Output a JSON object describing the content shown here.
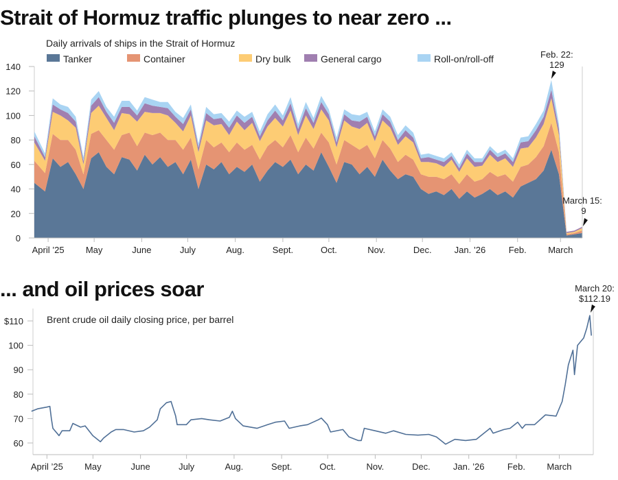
{
  "chart_data": [
    {
      "type": "area",
      "stacked": true,
      "title": "Strait of Hormuz traffic plunges to near zero ...",
      "subtitle": "Daily arrivals of ships in the Strait of Hormuz",
      "start_date": "2025-03-25",
      "step_days": 5,
      "ylim": [
        0,
        140
      ],
      "yticks": [
        0,
        20,
        40,
        60,
        80,
        100,
        120,
        140
      ],
      "xticks": [
        {
          "date": "2025-04-01",
          "label": "April ’25"
        },
        {
          "date": "2025-05-01",
          "label": "May"
        },
        {
          "date": "2025-06-01",
          "label": "June"
        },
        {
          "date": "2025-07-01",
          "label": "July"
        },
        {
          "date": "2025-08-01",
          "label": "Aug."
        },
        {
          "date": "2025-09-01",
          "label": "Sept."
        },
        {
          "date": "2025-10-01",
          "label": "Oct."
        },
        {
          "date": "2025-11-01",
          "label": "Nov."
        },
        {
          "date": "2025-12-01",
          "label": "Dec."
        },
        {
          "date": "2026-01-01",
          "label": "Jan. ’26"
        },
        {
          "date": "2026-02-01",
          "label": "Feb."
        },
        {
          "date": "2026-03-01",
          "label": "March"
        }
      ],
      "series": [
        {
          "name": "Tanker",
          "color": "#5a7797",
          "values": [
            45,
            38,
            65,
            58,
            62,
            52,
            40,
            65,
            70,
            58,
            52,
            66,
            64,
            55,
            68,
            60,
            66,
            58,
            62,
            52,
            64,
            40,
            60,
            56,
            62,
            52,
            58,
            54,
            60,
            46,
            55,
            62,
            58,
            64,
            52,
            60,
            55,
            70,
            58,
            45,
            62,
            60,
            52,
            58,
            50,
            64,
            55,
            48,
            52,
            50,
            40,
            36,
            38,
            35,
            40,
            32,
            38,
            33,
            36,
            40,
            35,
            38,
            33,
            42,
            45,
            48,
            55,
            72,
            52,
            2,
            3,
            4
          ]
        },
        {
          "name": "Container",
          "color": "#e59473",
          "values": [
            18,
            15,
            20,
            22,
            18,
            20,
            12,
            20,
            18,
            22,
            20,
            18,
            22,
            20,
            18,
            24,
            20,
            22,
            18,
            20,
            18,
            16,
            20,
            18,
            16,
            18,
            20,
            18,
            16,
            18,
            20,
            18,
            16,
            20,
            18,
            22,
            18,
            16,
            20,
            15,
            18,
            16,
            20,
            18,
            15,
            16,
            18,
            14,
            16,
            14,
            12,
            14,
            12,
            13,
            12,
            12,
            14,
            13,
            12,
            14,
            15,
            14,
            13,
            16,
            15,
            18,
            20,
            22,
            18,
            1,
            1,
            2
          ]
        },
        {
          "name": "Dry bulk",
          "color": "#fdcc74",
          "values": [
            15,
            10,
            18,
            20,
            16,
            18,
            8,
            17,
            20,
            18,
            16,
            18,
            15,
            20,
            17,
            18,
            16,
            20,
            14,
            15,
            18,
            14,
            16,
            18,
            15,
            14,
            17,
            16,
            18,
            15,
            16,
            18,
            17,
            20,
            14,
            18,
            16,
            19,
            18,
            14,
            16,
            15,
            17,
            18,
            14,
            16,
            17,
            14,
            15,
            14,
            10,
            12,
            11,
            10,
            12,
            10,
            13,
            12,
            11,
            14,
            12,
            13,
            12,
            15,
            14,
            16,
            18,
            20,
            14,
            1,
            1,
            2
          ]
        },
        {
          "name": "General cargo",
          "color": "#a07fb0",
          "values": [
            5,
            3,
            6,
            5,
            6,
            5,
            3,
            6,
            7,
            5,
            6,
            5,
            6,
            5,
            7,
            6,
            5,
            6,
            5,
            6,
            5,
            4,
            6,
            5,
            5,
            6,
            5,
            6,
            5,
            4,
            5,
            6,
            5,
            6,
            5,
            6,
            5,
            6,
            5,
            4,
            5,
            5,
            6,
            5,
            4,
            5,
            5,
            4,
            5,
            4,
            3,
            4,
            3,
            4,
            3,
            3,
            4,
            4,
            3,
            4,
            4,
            4,
            4,
            5,
            5,
            6,
            6,
            7,
            5,
            1,
            1,
            1
          ]
        },
        {
          "name": "Roll-on/roll-off",
          "color": "#a9d4f3",
          "values": [
            4,
            3,
            5,
            4,
            5,
            4,
            3,
            5,
            5,
            4,
            5,
            5,
            5,
            4,
            5,
            5,
            4,
            5,
            4,
            5,
            4,
            3,
            5,
            4,
            4,
            5,
            4,
            5,
            4,
            4,
            5,
            5,
            4,
            5,
            4,
            5,
            4,
            5,
            4,
            4,
            4,
            5,
            5,
            4,
            4,
            4,
            4,
            4,
            4,
            4,
            3,
            3,
            3,
            3,
            3,
            3,
            3,
            3,
            3,
            3,
            3,
            3,
            3,
            4,
            4,
            5,
            5,
            8,
            4,
            0,
            0,
            0
          ]
        }
      ],
      "annotations": [
        {
          "date": "2026-02-22",
          "label_line1": "Feb. 22:",
          "label_line2": "129",
          "value": 129
        },
        {
          "date": "2026-03-15",
          "label_line1": "March 15:",
          "label_line2": "9",
          "value": 9
        }
      ]
    },
    {
      "type": "line",
      "title": "... and oil prices soar",
      "subtitle": "Brent crude oil daily closing price, per barrel",
      "color": "#4f6f96",
      "ylim": [
        55,
        115
      ],
      "yticks": [
        {
          "v": 60,
          "label": "60"
        },
        {
          "v": 70,
          "label": "70"
        },
        {
          "v": 80,
          "label": "80"
        },
        {
          "v": 90,
          "label": "90"
        },
        {
          "v": 100,
          "label": "100"
        },
        {
          "v": 110,
          "label": "$110"
        }
      ],
      "xticks": [
        {
          "date": "2025-04-01",
          "label": "April ’25"
        },
        {
          "date": "2025-05-01",
          "label": "May"
        },
        {
          "date": "2025-06-01",
          "label": "June"
        },
        {
          "date": "2025-07-01",
          "label": "July"
        },
        {
          "date": "2025-08-01",
          "label": "Aug."
        },
        {
          "date": "2025-09-01",
          "label": "Sept."
        },
        {
          "date": "2025-10-01",
          "label": "Oct."
        },
        {
          "date": "2025-11-01",
          "label": "Nov."
        },
        {
          "date": "2025-12-01",
          "label": "Dec."
        },
        {
          "date": "2026-01-01",
          "label": "Jan. ’26"
        },
        {
          "date": "2026-02-01",
          "label": "Feb."
        },
        {
          "date": "2026-03-01",
          "label": "March"
        }
      ],
      "points": [
        [
          "2025-03-21",
          73
        ],
        [
          "2025-03-25",
          74
        ],
        [
          "2025-03-31",
          74.7
        ],
        [
          "2025-04-02",
          75
        ],
        [
          "2025-04-03",
          70
        ],
        [
          "2025-04-04",
          66
        ],
        [
          "2025-04-08",
          63
        ],
        [
          "2025-04-10",
          65
        ],
        [
          "2025-04-15",
          65
        ],
        [
          "2025-04-17",
          68
        ],
        [
          "2025-04-22",
          66.5
        ],
        [
          "2025-04-25",
          67
        ],
        [
          "2025-04-30",
          63
        ],
        [
          "2025-05-05",
          60.5
        ],
        [
          "2025-05-07",
          62
        ],
        [
          "2025-05-12",
          64.5
        ],
        [
          "2025-05-15",
          65.5
        ],
        [
          "2025-05-20",
          65.5
        ],
        [
          "2025-05-27",
          64.5
        ],
        [
          "2025-06-02",
          65
        ],
        [
          "2025-06-06",
          66.5
        ],
        [
          "2025-06-11",
          69.5
        ],
        [
          "2025-06-13",
          74
        ],
        [
          "2025-06-17",
          76.5
        ],
        [
          "2025-06-20",
          77
        ],
        [
          "2025-06-23",
          71
        ],
        [
          "2025-06-24",
          67.5
        ],
        [
          "2025-06-30",
          67.5
        ],
        [
          "2025-07-03",
          69.5
        ],
        [
          "2025-07-10",
          70
        ],
        [
          "2025-07-15",
          69.5
        ],
        [
          "2025-07-22",
          69
        ],
        [
          "2025-07-28",
          70.5
        ],
        [
          "2025-07-30",
          73
        ],
        [
          "2025-08-01",
          70
        ],
        [
          "2025-08-06",
          67
        ],
        [
          "2025-08-15",
          66
        ],
        [
          "2025-08-22",
          67.5
        ],
        [
          "2025-08-27",
          68.5
        ],
        [
          "2025-09-02",
          69
        ],
        [
          "2025-09-05",
          66
        ],
        [
          "2025-09-12",
          67
        ],
        [
          "2025-09-17",
          67.5
        ],
        [
          "2025-09-24",
          69.5
        ],
        [
          "2025-09-26",
          70.2
        ],
        [
          "2025-09-30",
          67.5
        ],
        [
          "2025-10-02",
          64.5
        ],
        [
          "2025-10-10",
          65.5
        ],
        [
          "2025-10-14",
          62.5
        ],
        [
          "2025-10-20",
          61
        ],
        [
          "2025-10-22",
          61
        ],
        [
          "2025-10-24",
          66
        ],
        [
          "2025-10-31",
          65
        ],
        [
          "2025-11-07",
          64
        ],
        [
          "2025-11-12",
          65
        ],
        [
          "2025-11-20",
          63.5
        ],
        [
          "2025-11-28",
          63.2
        ],
        [
          "2025-12-05",
          63.5
        ],
        [
          "2025-12-10",
          62.5
        ],
        [
          "2025-12-16",
          59.5
        ],
        [
          "2025-12-22",
          61.5
        ],
        [
          "2025-12-29",
          61
        ],
        [
          "2026-01-05",
          61.5
        ],
        [
          "2026-01-09",
          63.5
        ],
        [
          "2026-01-14",
          66
        ],
        [
          "2026-01-16",
          64
        ],
        [
          "2026-01-23",
          65.5
        ],
        [
          "2026-01-27",
          66
        ],
        [
          "2026-02-01",
          68.5
        ],
        [
          "2026-02-04",
          66
        ],
        [
          "2026-02-06",
          67.5
        ],
        [
          "2026-02-12",
          67.5
        ],
        [
          "2026-02-19",
          71.5
        ],
        [
          "2026-02-26",
          71
        ],
        [
          "2026-02-27",
          72.5
        ],
        [
          "2026-03-02",
          77
        ],
        [
          "2026-03-04",
          84
        ],
        [
          "2026-03-06",
          92
        ],
        [
          "2026-03-09",
          98
        ],
        [
          "2026-03-10",
          88
        ],
        [
          "2026-03-12",
          100
        ],
        [
          "2026-03-16",
          103
        ],
        [
          "2026-03-18",
          107
        ],
        [
          "2026-03-20",
          112.19
        ],
        [
          "2026-03-21",
          104
        ]
      ],
      "annotations": [
        {
          "date": "2026-03-20",
          "label_line1": "March 20:",
          "label_line2": "$112.19",
          "value": 112.19
        }
      ]
    }
  ]
}
